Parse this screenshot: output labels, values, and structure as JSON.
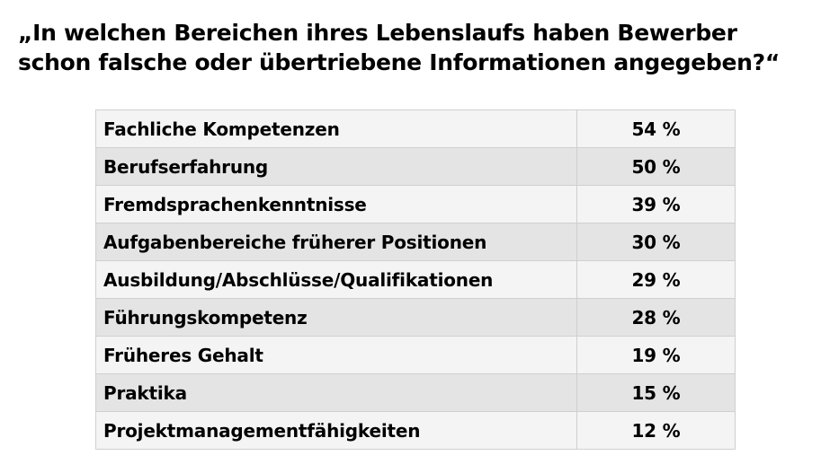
{
  "title": {
    "line1": "„In welchen Bereichen ihres Lebenslaufs haben Bewerber",
    "line2": "schon falsche oder übertriebene Informationen angegeben?“"
  },
  "chart_data": {
    "type": "table",
    "title": "„In welchen Bereichen ihres Lebenslaufs haben Bewerber schon falsche oder übertriebene Informationen angegeben?“",
    "unit": "%",
    "categories": [
      "Fachliche Kompetenzen",
      "Berufserfahrung",
      "Fremdsprachenkenntnisse",
      "Aufgabenbereiche früherer Positionen",
      "Ausbildung/Abschlüsse/Qualifikationen",
      "Führungskompetenz",
      "Früheres Gehalt",
      "Praktika",
      "Projektmanagementfähigkeiten"
    ],
    "values": [
      54,
      50,
      39,
      30,
      29,
      28,
      19,
      15,
      12
    ],
    "value_labels": [
      "54 %",
      "50 %",
      "39 %",
      "30 %",
      "29 %",
      "28 %",
      "19 %",
      "15 %",
      "12 %"
    ]
  }
}
